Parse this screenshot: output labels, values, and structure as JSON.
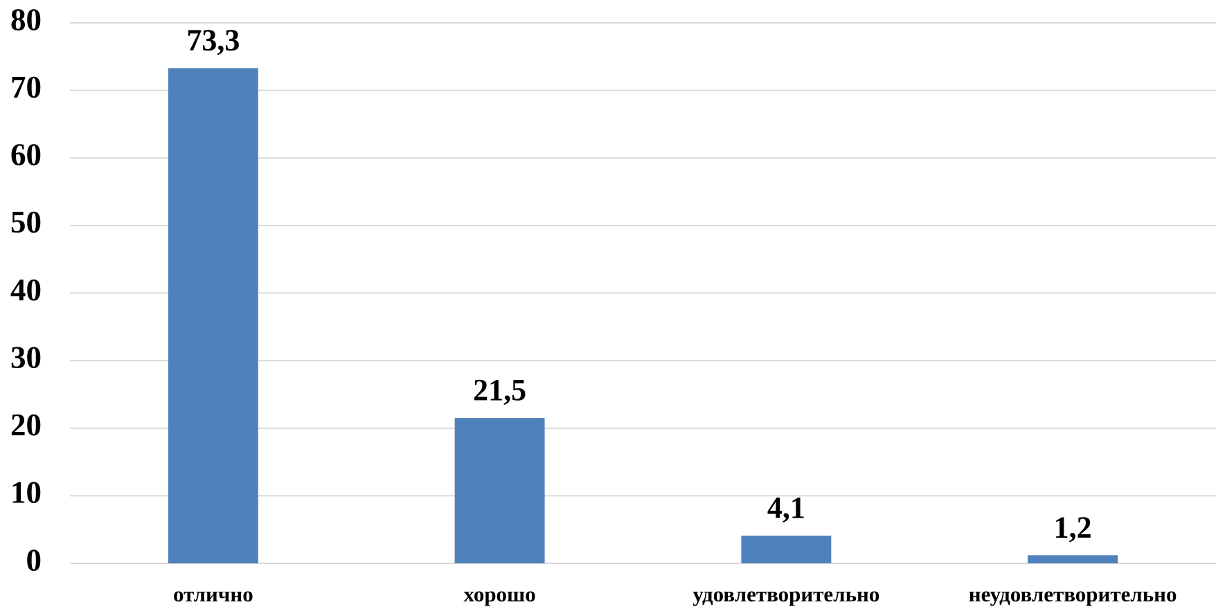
{
  "chart_data": {
    "type": "bar",
    "categories": [
      "отлично",
      "хорошо",
      "удовлетворительно",
      "неудовлетворительно"
    ],
    "values": [
      73.3,
      21.5,
      4.1,
      1.2
    ],
    "value_labels": [
      "73,3",
      "21,5",
      "4,1",
      "1,2"
    ],
    "color": "#4f81bd",
    "ylim": [
      0,
      80
    ],
    "yticks": [
      0,
      10,
      20,
      30,
      40,
      50,
      60,
      70,
      80
    ],
    "grid": true
  }
}
